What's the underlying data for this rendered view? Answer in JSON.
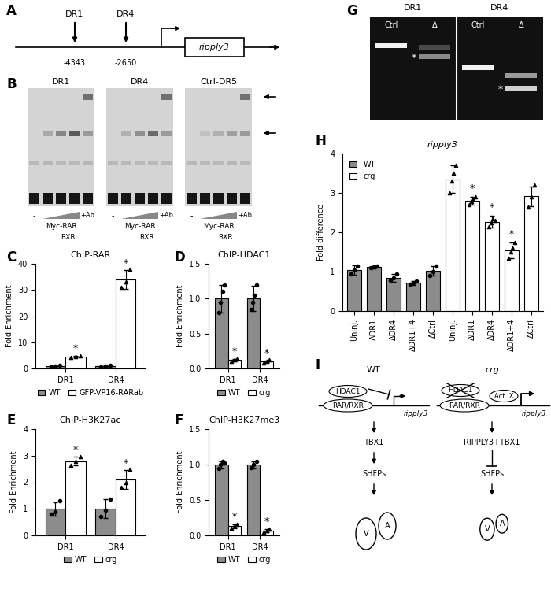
{
  "panel_a": {
    "panel": "A",
    "elements": [
      {
        "label": "DR1",
        "position": -4343
      },
      {
        "label": "DR4",
        "position": -2650
      }
    ],
    "gene": "ripply3"
  },
  "panel_b": {
    "panel": "B",
    "gels": [
      "DR1",
      "DR4",
      "Ctrl-DR5"
    ],
    "lane_labels": {
      "none": "-",
      "protein": "Myc-RAR",
      "partner": "RXR",
      "antibody": "+Ab"
    }
  },
  "panel_g": {
    "panel": "G",
    "groups": [
      {
        "name": "DR1",
        "lanes": [
          "Ctrl",
          "Δ"
        ]
      },
      {
        "name": "DR4",
        "lanes": [
          "Ctrl",
          "Δ"
        ]
      }
    ],
    "mark": "*"
  },
  "panel_i": {
    "panel": "I",
    "wt": {
      "title": "WT",
      "factors": [
        "HDAC1",
        "RAR/RXR"
      ],
      "gene": "ripply3",
      "cascade": [
        "TBX1",
        "SHFPs"
      ],
      "heart": [
        "V",
        "A"
      ]
    },
    "crg": {
      "title": "crg",
      "factors": [
        "HDAC1",
        "RAR/RXR",
        "Act. X"
      ],
      "gene": "ripply3",
      "cascade": [
        "RIPPLY3+TBX1",
        "SHFPs"
      ],
      "heart": [
        "V",
        "A"
      ]
    }
  },
  "chart_data": [
    {
      "panel": "C",
      "type": "bar",
      "title": "ChIP-RAR",
      "y_label": "Fold Enrichment",
      "categories": [
        "DR1",
        "DR4"
      ],
      "ylim": [
        0,
        40
      ],
      "yticks": [
        0,
        10,
        20,
        30,
        40
      ],
      "legend": "bottom",
      "series": [
        {
          "name": "WT",
          "color": "#8c8c8c",
          "marker": "circle",
          "values": [
            0.9,
            0.95
          ],
          "errors": [
            0.25,
            0.25
          ],
          "points": [
            [
              0.6,
              0.9,
              1.1
            ],
            [
              0.7,
              1.0,
              1.2
            ]
          ],
          "annotations": [
            null,
            null
          ]
        },
        {
          "name": "GFP-VP16-RARab",
          "color": "#ffffff",
          "marker": "triangle",
          "values": [
            4.5,
            34
          ],
          "errors": [
            0.35,
            3.5
          ],
          "points": [
            [
              4.2,
              4.5,
              4.9
            ],
            [
              31,
              33,
              38
            ]
          ],
          "annotations": [
            "*",
            "*"
          ]
        }
      ]
    },
    {
      "panel": "D",
      "type": "bar",
      "title": "ChIP-HDAC1",
      "y_label": "Fold Enrichment",
      "categories": [
        "DR1",
        "DR4"
      ],
      "ylim": [
        0,
        1.5
      ],
      "yticks": [
        {
          "value": 0,
          "label": "0.0"
        },
        0.5,
        {
          "value": 1,
          "label": "1.0"
        },
        1.5
      ],
      "legend": "bottom",
      "series": [
        {
          "name": "WT",
          "color": "#8c8c8c",
          "marker": "circle",
          "values": [
            1.0,
            1.0
          ],
          "errors": [
            0.2,
            0.18
          ],
          "points": [
            [
              0.8,
              0.95,
              1.1,
              1.2
            ],
            [
              0.85,
              0.95,
              1.05,
              1.2
            ]
          ],
          "annotations": [
            null,
            null
          ]
        },
        {
          "name": "crg",
          "color": "#ffffff",
          "marker": "triangle",
          "values": [
            0.12,
            0.1
          ],
          "errors": [
            0.02,
            0.015
          ],
          "points": [
            [
              0.1,
              0.12,
              0.14
            ],
            [
              0.08,
              0.1,
              0.12
            ]
          ],
          "annotations": [
            "*",
            "*"
          ]
        }
      ]
    },
    {
      "panel": "E",
      "type": "bar",
      "title": "ChIP-H3K27ac",
      "y_label": "Fold Enrichment",
      "categories": [
        "DR1",
        "DR4"
      ],
      "ylim": [
        0,
        4
      ],
      "yticks": [
        0,
        1,
        2,
        3,
        4
      ],
      "legend": "bottom",
      "series": [
        {
          "name": "WT",
          "color": "#8c8c8c",
          "marker": "circle",
          "values": [
            1.0,
            1.0
          ],
          "errors": [
            0.25,
            0.35
          ],
          "points": [
            [
              0.8,
              0.9,
              1.3
            ],
            [
              0.7,
              0.95,
              1.35
            ]
          ],
          "annotations": [
            null,
            null
          ]
        },
        {
          "name": "crg",
          "color": "#ffffff",
          "marker": "triangle",
          "values": [
            2.8,
            2.1
          ],
          "errors": [
            0.15,
            0.35
          ],
          "points": [
            [
              2.65,
              2.8,
              2.95
            ],
            [
              1.8,
              2.0,
              2.5
            ]
          ],
          "annotations": [
            "*",
            "*"
          ]
        }
      ]
    },
    {
      "panel": "F",
      "type": "bar",
      "title": "ChIP-H3K27me3",
      "y_label": "Fold Enrichment",
      "categories": [
        "DR1",
        "DR4"
      ],
      "ylim": [
        0,
        1.5
      ],
      "yticks": [
        {
          "value": 0,
          "label": "0.0"
        },
        0.5,
        {
          "value": 1,
          "label": "1.0"
        },
        1.5
      ],
      "legend": "bottom",
      "series": [
        {
          "name": "WT",
          "color": "#8c8c8c",
          "marker": "circle",
          "values": [
            1.0,
            1.0
          ],
          "errors": [
            0.05,
            0.05
          ],
          "points": [
            [
              0.95,
              1.0,
              1.05,
              1.02
            ],
            [
              0.96,
              1.0,
              1.04
            ]
          ],
          "annotations": [
            null,
            null
          ]
        },
        {
          "name": "crg",
          "color": "#ffffff",
          "marker": "triangle",
          "values": [
            0.13,
            0.07
          ],
          "errors": [
            0.03,
            0.02
          ],
          "points": [
            [
              0.1,
              0.13,
              0.16
            ],
            [
              0.05,
              0.07,
              0.09
            ]
          ],
          "annotations": [
            "*",
            "*"
          ]
        }
      ]
    },
    {
      "panel": "H",
      "type": "bar",
      "title": "ripply3",
      "y_label": "Fold difference",
      "categories": [
        "Uninj.",
        "ΔDR1",
        "ΔDR4",
        "ΔDR1+4",
        "ΔCtrl",
        "Uninj.",
        "ΔDR1",
        "ΔDR4",
        "ΔDR1+4",
        "ΔCtrl"
      ],
      "ylim": [
        0,
        4
      ],
      "yticks": [
        0,
        1,
        2,
        3,
        4
      ],
      "legend": "upper left",
      "series": [
        {
          "name": "WT",
          "color": "#8c8c8c",
          "marker": "circle",
          "values": [
            1.05,
            1.12,
            0.85,
            0.72,
            1.02,
            null,
            null,
            null,
            null,
            null
          ],
          "errors": [
            0.12,
            0.03,
            0.1,
            0.05,
            0.12,
            null,
            null,
            null,
            null,
            null
          ],
          "points": [
            [
              0.95,
              1.05,
              1.15
            ],
            [
              1.1,
              1.12,
              1.14
            ],
            [
              0.78,
              0.85,
              0.95
            ],
            [
              0.68,
              0.72,
              0.76
            ],
            [
              0.9,
              1.0,
              1.15
            ],
            null,
            null,
            null,
            null,
            null
          ],
          "annotations": [
            null,
            null,
            null,
            null,
            null,
            null,
            null,
            null,
            null,
            null
          ]
        },
        {
          "name": "crg",
          "color": "#ffffff",
          "marker": "triangle",
          "values": [
            null,
            null,
            null,
            null,
            null,
            3.35,
            2.8,
            2.27,
            1.55,
            2.92
          ],
          "errors": [
            null,
            null,
            null,
            null,
            null,
            0.35,
            0.1,
            0.15,
            0.2,
            0.25
          ],
          "points": [
            null,
            null,
            null,
            null,
            null,
            [
              3.0,
              3.3,
              3.5,
              3.7
            ],
            [
              2.7,
              2.78,
              2.85,
              2.9
            ],
            [
              2.15,
              2.25,
              2.35,
              2.3
            ],
            [
              1.35,
              1.5,
              1.6,
              1.75
            ],
            [
              2.65,
              2.9,
              3.2
            ]
          ],
          "annotations": [
            null,
            null,
            null,
            null,
            null,
            null,
            "*",
            "*",
            "*",
            null
          ]
        }
      ]
    }
  ]
}
